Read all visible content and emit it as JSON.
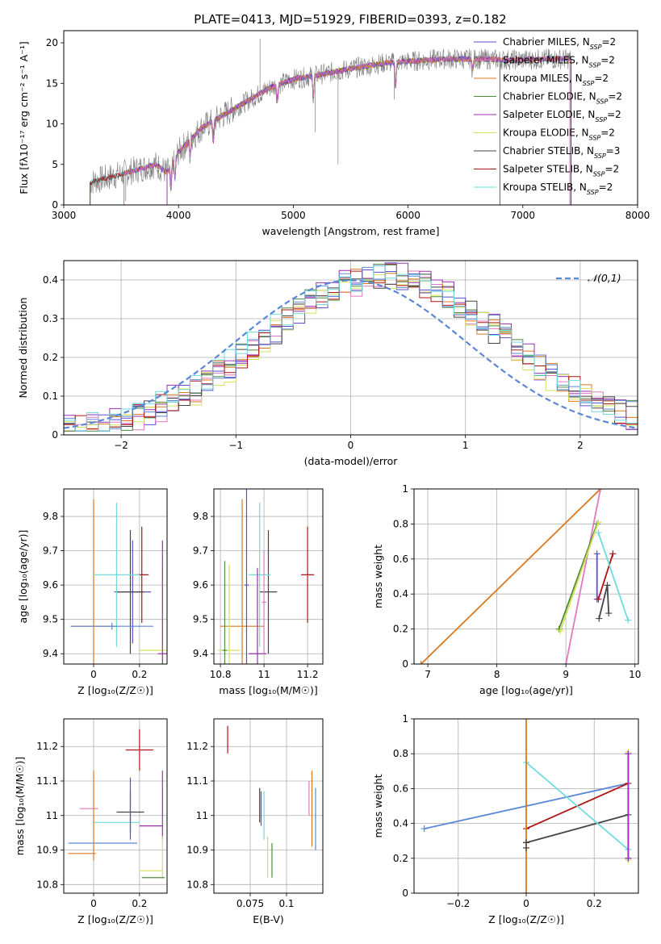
{
  "title": "PLATE=0413, MJD=51929, FIBERID=0393, z=0.182",
  "colors": {
    "chabrier_miles": "#5a4fcf",
    "salpeter_miles": "#e377c2",
    "kroupa_miles": "#d9781f",
    "chabrier_elodie": "#4f8a3f",
    "salpeter_elodie": "#9a2fb5",
    "kroupa_elodie": "#d4e25a",
    "chabrier_stelib": "#444444",
    "salpeter_stelib": "#b01515",
    "kroupa_stelib": "#6ddbe0",
    "normal": "#5a87d6",
    "data": "#7f7f7f"
  },
  "chart_data": [
    {
      "id": "spectrum",
      "type": "line",
      "xlabel": "wavelength [Angstrom, rest frame]",
      "ylabel": "Flux [fλ10⁻¹⁷ erg cm⁻² s⁻¹ A⁻¹]",
      "xlim": [
        3000,
        8000
      ],
      "ylim": [
        0,
        21.5
      ],
      "xticks": [
        3000,
        4000,
        5000,
        6000,
        7000,
        8000
      ],
      "yticks": [
        0,
        5,
        10,
        15,
        20
      ],
      "legend_position": "right",
      "legend": [
        "Chabrier MILES, N_SSP=2",
        "Salpeter MILES, N_SSP=2",
        "Kroupa MILES, N_SSP=2",
        "Chabrier ELODIE, N_SSP=2",
        "Salpeter ELODIE, N_SSP=2",
        "Kroupa ELODIE, N_SSP=2",
        "Chabrier STELIB, N_SSP=3",
        "Salpeter STELIB, N_SSP=2",
        "Kroupa STELIB, N_SSP=2"
      ],
      "continuum_x": [
        3230,
        3500,
        3800,
        3900,
        4000,
        4200,
        4500,
        4800,
        5000,
        5200,
        5500,
        5800,
        6000,
        6300,
        6600,
        6900,
        7200,
        7420
      ],
      "continuum_y": [
        2.8,
        3.8,
        5.0,
        4.0,
        6.5,
        9.5,
        12.0,
        14.5,
        15.5,
        16.0,
        16.8,
        17.5,
        17.7,
        18.0,
        18.0,
        17.9,
        18.0,
        18.0
      ],
      "model_ranges": {
        "miles": [
          3525,
          7410
        ],
        "elodie": [
          3900,
          6800
        ],
        "stelib": [
          3230,
          7420
        ]
      }
    },
    {
      "id": "residuals",
      "type": "histogram",
      "xlabel": "(data-model)/error",
      "ylabel": "Normed distribution",
      "xlim": [
        -2.5,
        2.5
      ],
      "ylim": [
        0,
        0.45
      ],
      "xticks": [
        -2,
        -1,
        0,
        1,
        2
      ],
      "yticks": [
        0.0,
        0.1,
        0.2,
        0.3,
        0.4
      ],
      "legend": [
        "𝒩(0,1)"
      ],
      "legend_position": "top-right",
      "bin_width": 0.1
    },
    {
      "id": "age_vs_z",
      "type": "errorbar",
      "xlabel": "Z [log₁₀(Z/Z☉)]",
      "ylabel": "age  [log₁₀(age/yr)]",
      "xlim": [
        -0.13,
        0.32
      ],
      "ylim": [
        9.37,
        9.88
      ],
      "xticks": [
        0.0,
        0.2
      ],
      "yticks": [
        9.4,
        9.5,
        9.6,
        9.7,
        9.8
      ],
      "points": [
        {
          "model": "chabrier_miles",
          "x": 0.17,
          "y": 9.58,
          "xerr": 0.08,
          "yerr": 0.15
        },
        {
          "model": "kroupa_miles",
          "x": 0.0,
          "y": 9.48,
          "xerr": 0.1,
          "yerr": 0.37
        },
        {
          "model": "chabrier_stelib",
          "x": 0.16,
          "y": 9.58,
          "xerr": 0.06,
          "yerr": 0.18
        },
        {
          "model": "salpeter_stelib",
          "x": 0.21,
          "y": 9.63,
          "xerr": 0.03,
          "yerr": 0.14
        },
        {
          "model": "kroupa_stelib",
          "x": 0.1,
          "y": 9.63,
          "xerr": 0.1,
          "yerr": 0.21
        },
        {
          "model": "kroupa_elodie",
          "x": 0.3,
          "y": 9.41,
          "xerr": 0.1,
          "yerr": 0.24
        },
        {
          "model": "salpeter_elodie",
          "x": 0.3,
          "y": 9.4,
          "xerr": 0.02,
          "yerr": 0.33
        },
        {
          "model": "normal",
          "x": 0.08,
          "y": 9.48,
          "xerr": 0.18,
          "yerr": 0.01
        }
      ]
    },
    {
      "id": "age_vs_mass",
      "type": "errorbar",
      "xlabel": "mass [log₁₀(M/M☉)]",
      "ylabel": "",
      "xlim": [
        10.77,
        11.27
      ],
      "ylim": [
        9.37,
        9.88
      ],
      "xticks": [
        10.8,
        11.0,
        11.2
      ],
      "yticks": [
        9.4,
        9.5,
        9.6,
        9.7,
        9.8
      ],
      "points": [
        {
          "model": "kroupa_miles",
          "x": 10.9,
          "y": 9.48,
          "xerr": 0.1,
          "yerr": 0.37
        },
        {
          "model": "chabrier_stelib",
          "x": 11.02,
          "y": 9.58,
          "xerr": 0.04,
          "yerr": 0.18
        },
        {
          "model": "salpeter_stelib",
          "x": 11.2,
          "y": 9.63,
          "xerr": 0.03,
          "yerr": 0.14
        },
        {
          "model": "kroupa_stelib",
          "x": 10.98,
          "y": 9.63,
          "xerr": 0.05,
          "yerr": 0.21
        },
        {
          "model": "kroupa_elodie",
          "x": 10.84,
          "y": 9.41,
          "xerr": 0.05,
          "yerr": 0.25
        },
        {
          "model": "salpeter_elodie",
          "x": 10.97,
          "y": 9.4,
          "xerr": 0.04,
          "yerr": 0.25
        },
        {
          "model": "chabrier_miles",
          "x": 10.92,
          "y": 9.6,
          "xerr": 0.01,
          "yerr": 0.29
        },
        {
          "model": "chabrier_elodie",
          "x": 10.82,
          "y": 9.41,
          "xerr": 0.01,
          "yerr": 0.26
        },
        {
          "model": "salpeter_miles",
          "x": 11.0,
          "y": 9.55,
          "xerr": 0.01,
          "yerr": 0.15
        }
      ]
    },
    {
      "id": "weight_vs_age",
      "type": "line",
      "xlabel": "age  [log₁₀(age/yr)]",
      "ylabel": "mass weight",
      "xlim": [
        6.8,
        10.05
      ],
      "ylim": [
        0,
        1.0
      ],
      "xticks": [
        7,
        8,
        9,
        10
      ],
      "yticks": [
        0.0,
        0.2,
        0.4,
        0.6,
        0.8,
        1.0
      ],
      "series": [
        {
          "model": "kroupa_miles",
          "x": [
            6.9,
            9.5
          ],
          "y": [
            0.0,
            1.0
          ]
        },
        {
          "model": "salpeter_miles",
          "x": [
            9.0,
            9.5
          ],
          "y": [
            0.0,
            1.0
          ]
        },
        {
          "model": "chabrier_elodie",
          "x": [
            8.9,
            9.45
          ],
          "y": [
            0.2,
            0.8
          ]
        },
        {
          "model": "kroupa_elodie",
          "x": [
            8.92,
            9.47
          ],
          "y": [
            0.19,
            0.81
          ]
        },
        {
          "model": "chabrier_miles",
          "x": [
            9.45,
            9.45
          ],
          "y": [
            0.37,
            0.63
          ]
        },
        {
          "model": "salpeter_stelib",
          "x": [
            9.47,
            9.68
          ],
          "y": [
            0.37,
            0.63
          ]
        },
        {
          "model": "chabrier_stelib",
          "x": [
            9.48,
            9.6,
            9.62
          ],
          "y": [
            0.26,
            0.45,
            0.29
          ]
        },
        {
          "model": "kroupa_stelib",
          "x": [
            9.47,
            9.9
          ],
          "y": [
            0.75,
            0.25
          ]
        }
      ]
    },
    {
      "id": "mass_vs_z",
      "type": "errorbar",
      "xlabel": "Z [log₁₀(Z/Z☉)]",
      "ylabel": "mass [log₁₀(M/M☉)]",
      "xlim": [
        -0.13,
        0.32
      ],
      "ylim": [
        10.775,
        11.28
      ],
      "xticks": [
        0.0,
        0.2
      ],
      "yticks": [
        10.8,
        10.9,
        11.0,
        11.1,
        11.2
      ],
      "points": [
        {
          "model": "salpeter_stelib",
          "x": 0.2,
          "y": 11.19,
          "xerr": 0.06,
          "yerr": 0.06
        },
        {
          "model": "chabrier_stelib",
          "x": 0.16,
          "y": 11.01,
          "xerr": 0.06,
          "yerr": 0.06
        },
        {
          "model": "kroupa_stelib",
          "x": 0.1,
          "y": 10.98,
          "xerr": 0.1,
          "yerr": 0.0
        },
        {
          "model": "salpeter_miles",
          "x": -0.02,
          "y": 11.02,
          "xerr": 0.04,
          "yerr": 0.0
        },
        {
          "model": "normal",
          "x": 0.04,
          "y": 10.92,
          "xerr": 0.15,
          "yerr": 0.0
        },
        {
          "model": "kroupa_miles",
          "x": -0.05,
          "y": 10.89,
          "xerr": 0.06,
          "yerr": 0.0
        },
        {
          "model": "kroupa_miles",
          "x": 0.0,
          "y": 11.0,
          "xerr": 0.0,
          "yerr": 0.13
        },
        {
          "model": "chabrier_miles",
          "x": 0.16,
          "y": 11.02,
          "xerr": 0.0,
          "yerr": 0.09
        },
        {
          "model": "salpeter_elodie",
          "x": 0.3,
          "y": 11.03,
          "xerr": 0.0,
          "yerr": 0.1
        },
        {
          "model": "salpeter_elodie",
          "x": 0.25,
          "y": 10.97,
          "xerr": 0.05,
          "yerr": 0.0
        },
        {
          "model": "kroupa_elodie",
          "x": 0.3,
          "y": 10.88,
          "xerr": 0.0,
          "yerr": 0.06
        },
        {
          "model": "kroupa_elodie",
          "x": 0.25,
          "y": 10.84,
          "xerr": 0.05,
          "yerr": 0.0
        },
        {
          "model": "chabrier_elodie",
          "x": 0.26,
          "y": 10.82,
          "xerr": 0.05,
          "yerr": 0.0
        }
      ]
    },
    {
      "id": "mass_vs_ebv",
      "type": "errorbar",
      "xlabel": "E(B-V)",
      "ylabel": "",
      "xlim": [
        0.05,
        0.125
      ],
      "ylim": [
        10.775,
        11.28
      ],
      "xticks": [
        0.075,
        0.1
      ],
      "yticks": [
        10.8,
        10.9,
        11.0,
        11.1,
        11.2
      ],
      "points": [
        {
          "model": "salpeter_stelib",
          "x": 0.0595,
          "y": 11.22,
          "xerr": 0.0,
          "yerr": 0.04
        },
        {
          "model": "chabrier_stelib",
          "x": 0.0815,
          "y": 11.03,
          "xerr": 0.0,
          "yerr": 0.05
        },
        {
          "model": "salpeter_elodie",
          "x": 0.0825,
          "y": 11.02,
          "xerr": 0.0,
          "yerr": 0.05
        },
        {
          "model": "kroupa_stelib",
          "x": 0.0845,
          "y": 11.0,
          "xerr": 0.0,
          "yerr": 0.07
        },
        {
          "model": "kroupa_elodie",
          "x": 0.087,
          "y": 10.88,
          "xerr": 0.0,
          "yerr": 0.06
        },
        {
          "model": "chabrier_elodie",
          "x": 0.09,
          "y": 10.87,
          "xerr": 0.0,
          "yerr": 0.05
        },
        {
          "model": "salpeter_miles",
          "x": 0.1155,
          "y": 11.05,
          "xerr": 0.0,
          "yerr": 0.05
        },
        {
          "model": "kroupa_miles",
          "x": 0.1175,
          "y": 11.02,
          "xerr": 0.0,
          "yerr": 0.11
        },
        {
          "model": "normal",
          "x": 0.12,
          "y": 10.99,
          "xerr": 0.0,
          "yerr": 0.09
        }
      ]
    },
    {
      "id": "weight_vs_z",
      "type": "line",
      "xlabel": "Z [log₁₀(Z/Z☉)]",
      "ylabel": "mass weight",
      "xlim": [
        -0.33,
        0.33
      ],
      "ylim": [
        0,
        1.0
      ],
      "xticks": [
        -0.2,
        0.0,
        0.2
      ],
      "yticks": [
        0.0,
        0.2,
        0.4,
        0.6,
        0.8,
        1.0
      ],
      "series": [
        {
          "model": "normal",
          "x": [
            -0.3,
            0.3
          ],
          "y": [
            0.37,
            0.63
          ]
        },
        {
          "model": "salpeter_stelib",
          "x": [
            0.0,
            0.3
          ],
          "y": [
            0.37,
            0.63
          ]
        },
        {
          "model": "chabrier_stelib",
          "x": [
            0.0,
            0.3
          ],
          "y": [
            0.29,
            0.45
          ]
        },
        {
          "model": "kroupa_stelib",
          "x": [
            0.0,
            0.3
          ],
          "y": [
            0.75,
            0.25
          ]
        },
        {
          "model": "kroupa_miles",
          "x": [
            0.0,
            0.0
          ],
          "y": [
            0.0,
            1.0
          ]
        },
        {
          "model": "kroupa_elodie",
          "x": [
            0.3,
            0.3
          ],
          "y": [
            0.19,
            0.81
          ]
        },
        {
          "model": "chabrier_elodie",
          "x": [
            0.3,
            0.3
          ],
          "y": [
            0.2,
            0.8
          ]
        },
        {
          "model": "salpeter_elodie",
          "x": [
            0.3,
            0.3
          ],
          "y": [
            0.2,
            0.8
          ]
        }
      ],
      "markers": [
        {
          "model": "chabrier_stelib",
          "x": 0.0,
          "y": 0.26
        },
        {
          "model": "chabrier_stelib",
          "x": 0.0,
          "y": 0.29
        }
      ]
    }
  ]
}
